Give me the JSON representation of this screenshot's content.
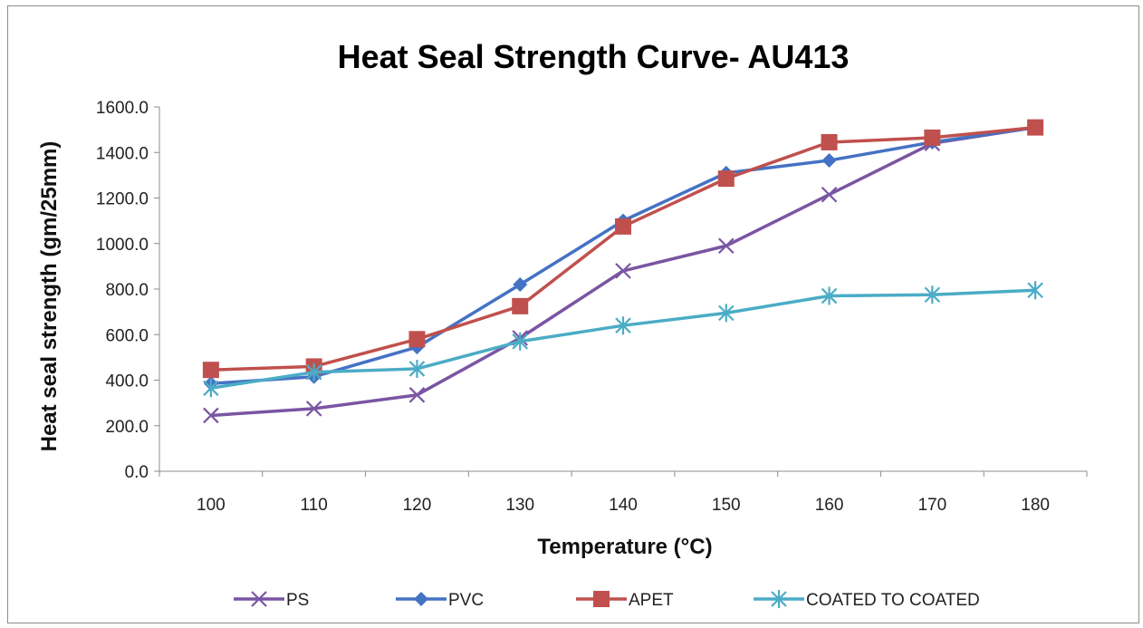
{
  "chart_data": {
    "type": "line",
    "title": "Heat Seal Strength Curve- AU413",
    "xlabel": "Temperature  (°C)",
    "ylabel": "Heat seal strength (gm/25mm)",
    "categories": [
      "100",
      "110",
      "120",
      "130",
      "140",
      "150",
      "160",
      "170",
      "180"
    ],
    "ylim": [
      0,
      1600
    ],
    "yticks": [
      "0.0",
      "200.0",
      "400.0",
      "600.0",
      "800.0",
      "1000.0",
      "1200.0",
      "1400.0",
      "1600.0"
    ],
    "grid": false,
    "legend_position": "bottom",
    "series": [
      {
        "name": "PS",
        "color": "#7a55a3",
        "marker": "x",
        "values": [
          245,
          275,
          335,
          585,
          880,
          990,
          1215,
          1440,
          1510
        ]
      },
      {
        "name": "PVC",
        "color": "#4472c4",
        "marker": "diamond",
        "values": [
          385,
          415,
          545,
          820,
          1100,
          1310,
          1365,
          1445,
          1510
        ]
      },
      {
        "name": "APET",
        "color": "#c0504d",
        "marker": "square",
        "values": [
          445,
          460,
          580,
          725,
          1075,
          1285,
          1445,
          1465,
          1510
        ]
      },
      {
        "name": "COATED TO COATED",
        "color": "#4bacc6",
        "marker": "asterisk",
        "values": [
          365,
          435,
          450,
          570,
          640,
          695,
          770,
          775,
          795
        ]
      }
    ]
  }
}
